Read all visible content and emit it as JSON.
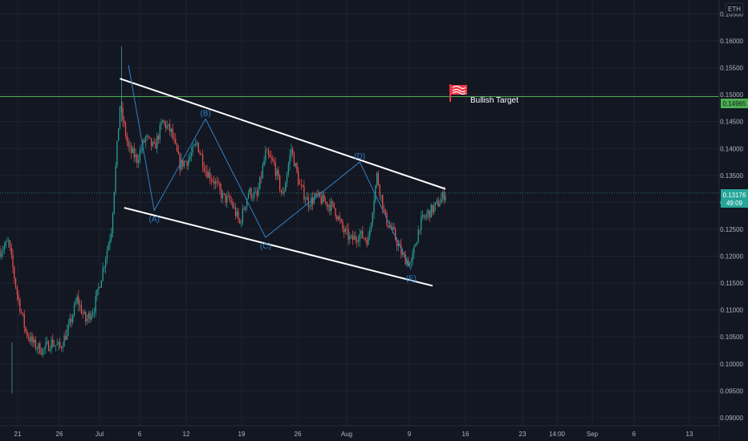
{
  "currency_label": "ETH",
  "price_label": {
    "value": "0.13176",
    "countdown": "49:09"
  },
  "target_label": "0.14965",
  "annotation": {
    "text": "Bullish Target",
    "icon": "flag-icon"
  },
  "colors": {
    "background": "#131722",
    "grid": "#1f2330",
    "axis_text": "#b2b5be",
    "up": "#26a69a",
    "down": "#ef5350",
    "channel": "#ffffff",
    "wave": "#2f80c9",
    "target_line": "#4caf50",
    "target_badge": "#4caf50",
    "price_badge": "#26a69a",
    "flag": "#f23645"
  },
  "chart_data": {
    "type": "candlestick",
    "symbol_unit": "ETH",
    "ylim": [
      0.0885,
      0.1676
    ],
    "x_ticks": [
      "21",
      "26",
      "Jul",
      "6",
      "12",
      "19",
      "26",
      "Aug",
      "9",
      "16",
      "23",
      "14:00",
      "Sep",
      "6",
      "13"
    ],
    "y_ticks": [
      "0.16500",
      "0.16000",
      "0.15500",
      "0.15000",
      "0.14500",
      "0.14000",
      "0.13500",
      "0.13000",
      "0.12500",
      "0.12000",
      "0.11500",
      "0.11000",
      "0.10500",
      "0.10000",
      "0.09500",
      "0.09000"
    ],
    "y_tick_values": [
      0.165,
      0.16,
      0.155,
      0.15,
      0.145,
      0.14,
      0.135,
      0.13,
      0.125,
      0.12,
      0.115,
      0.11,
      0.105,
      0.1,
      0.095,
      0.09
    ],
    "last_price": 0.13176,
    "target_price": 0.14965,
    "wave_labels": [
      "(A)",
      "(B)",
      "(C)",
      "(D)",
      "(E)"
    ],
    "wave_points": [
      {
        "label": "",
        "day": 7,
        "price": 0.1555
      },
      {
        "label": "(A)",
        "day": 10,
        "price": 0.1285
      },
      {
        "label": "(B)",
        "day": 16,
        "price": 0.1455
      },
      {
        "label": "(C)",
        "day": 23,
        "price": 0.1235
      },
      {
        "label": "(D)",
        "day": 34,
        "price": 0.1375
      },
      {
        "label": "(E)",
        "day": 40,
        "price": 0.1175
      }
    ],
    "channel_upper": [
      {
        "day": 6,
        "price": 0.153
      },
      {
        "day": 44,
        "price": 0.1325
      }
    ],
    "channel_lower": [
      {
        "day": 6.5,
        "price": 0.129
      },
      {
        "day": 42.5,
        "price": 0.1145
      }
    ],
    "path_points": [
      [
        -8,
        0.121
      ],
      [
        -7,
        0.1225
      ],
      [
        -6,
        0.113
      ],
      [
        -5,
        0.106
      ],
      [
        -4,
        0.1035
      ],
      [
        -3,
        0.1025
      ],
      [
        -2,
        0.104
      ],
      [
        -1,
        0.103
      ],
      [
        0,
        0.1065
      ],
      [
        1,
        0.112
      ],
      [
        2,
        0.108
      ],
      [
        3,
        0.1105
      ],
      [
        4,
        0.1175
      ],
      [
        5,
        0.125
      ],
      [
        6,
        0.148
      ],
      [
        7,
        0.14
      ],
      [
        8,
        0.138
      ],
      [
        9,
        0.142
      ],
      [
        10,
        0.14
      ],
      [
        11,
        0.145
      ],
      [
        12,
        0.143
      ],
      [
        13,
        0.137
      ],
      [
        14,
        0.138
      ],
      [
        15,
        0.141
      ],
      [
        16,
        0.136
      ],
      [
        17,
        0.134
      ],
      [
        18,
        0.131
      ],
      [
        19,
        0.13
      ],
      [
        20,
        0.126
      ],
      [
        21,
        0.132
      ],
      [
        22,
        0.131
      ],
      [
        23,
        0.139
      ],
      [
        24,
        0.137
      ],
      [
        25,
        0.131
      ],
      [
        26,
        0.14
      ],
      [
        27,
        0.133
      ],
      [
        28,
        0.13
      ],
      [
        29,
        0.131
      ],
      [
        30,
        0.13
      ],
      [
        31,
        0.129
      ],
      [
        32,
        0.125
      ],
      [
        33,
        0.123
      ],
      [
        34,
        0.124
      ],
      [
        35,
        0.123
      ],
      [
        36,
        0.135
      ],
      [
        37,
        0.127
      ],
      [
        38,
        0.124
      ],
      [
        39,
        0.12
      ],
      [
        40,
        0.1185
      ],
      [
        41,
        0.126
      ],
      [
        42,
        0.128
      ],
      [
        43,
        0.1295
      ],
      [
        44,
        0.1318
      ]
    ],
    "day_range": [
      -8,
      44
    ]
  }
}
